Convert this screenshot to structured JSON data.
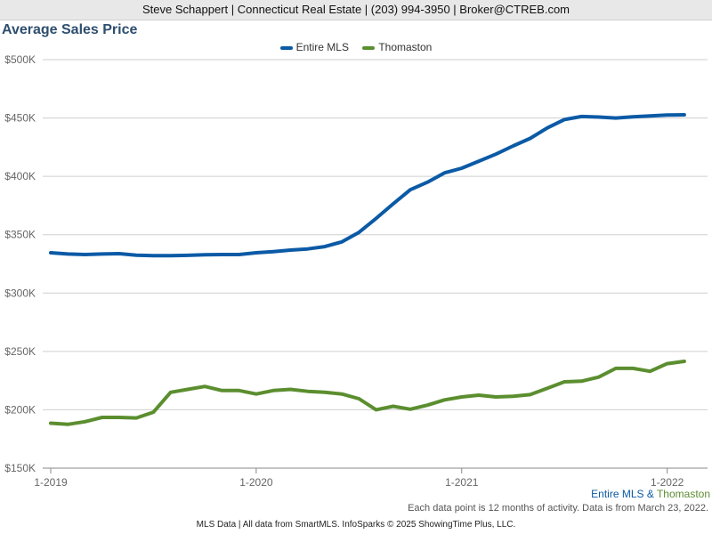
{
  "header": {
    "contact": "Steve Schappert | Connecticut Real Estate | (203) 994-3950 | Broker@CTREB.com"
  },
  "chart_data": {
    "type": "line",
    "title": "Average Sales Price",
    "x_labels": [
      "1-2019",
      "1-2020",
      "1-2021",
      "1-2022"
    ],
    "y_ticks": [
      "$150K",
      "$200K",
      "$250K",
      "$300K",
      "$350K",
      "$400K",
      "$450K",
      "$500K"
    ],
    "ylim": [
      150000,
      500000
    ],
    "legend_position": "top-center",
    "grid": true,
    "series": [
      {
        "name": "Entire MLS",
        "color": "#0b5aa6",
        "values": [
          334500,
          333500,
          333000,
          333500,
          333800,
          332500,
          332000,
          332000,
          332300,
          332800,
          333000,
          333000,
          334500,
          335500,
          336800,
          337800,
          339800,
          343800,
          352000,
          364000,
          376500,
          388500,
          395000,
          403000,
          407000,
          413000,
          419000,
          426000,
          432500,
          441500,
          448700,
          451300,
          450800,
          450000,
          451000,
          451800,
          452500,
          452700
        ]
      },
      {
        "name": "Thomaston",
        "color": "#5b8e2f",
        "values": [
          188500,
          187500,
          189800,
          193500,
          193500,
          193000,
          198000,
          215000,
          217500,
          220000,
          216500,
          216500,
          213500,
          216500,
          217500,
          215800,
          215000,
          213500,
          209500,
          200000,
          203000,
          200500,
          204000,
          208500,
          211000,
          212500,
          211000,
          211500,
          213000,
          218500,
          224000,
          224500,
          228000,
          235500,
          235500,
          233000,
          239500,
          241500
        ]
      }
    ]
  },
  "source_line": {
    "prefix": "Entire MLS",
    "amp": " & ",
    "suffix": "Thomaston"
  },
  "note": "Each data point is 12 months of activity. Data is from March 23, 2022.",
  "footer": "MLS Data | All data from SmartMLS. InfoSparks © 2025 ShowingTime Plus, LLC."
}
